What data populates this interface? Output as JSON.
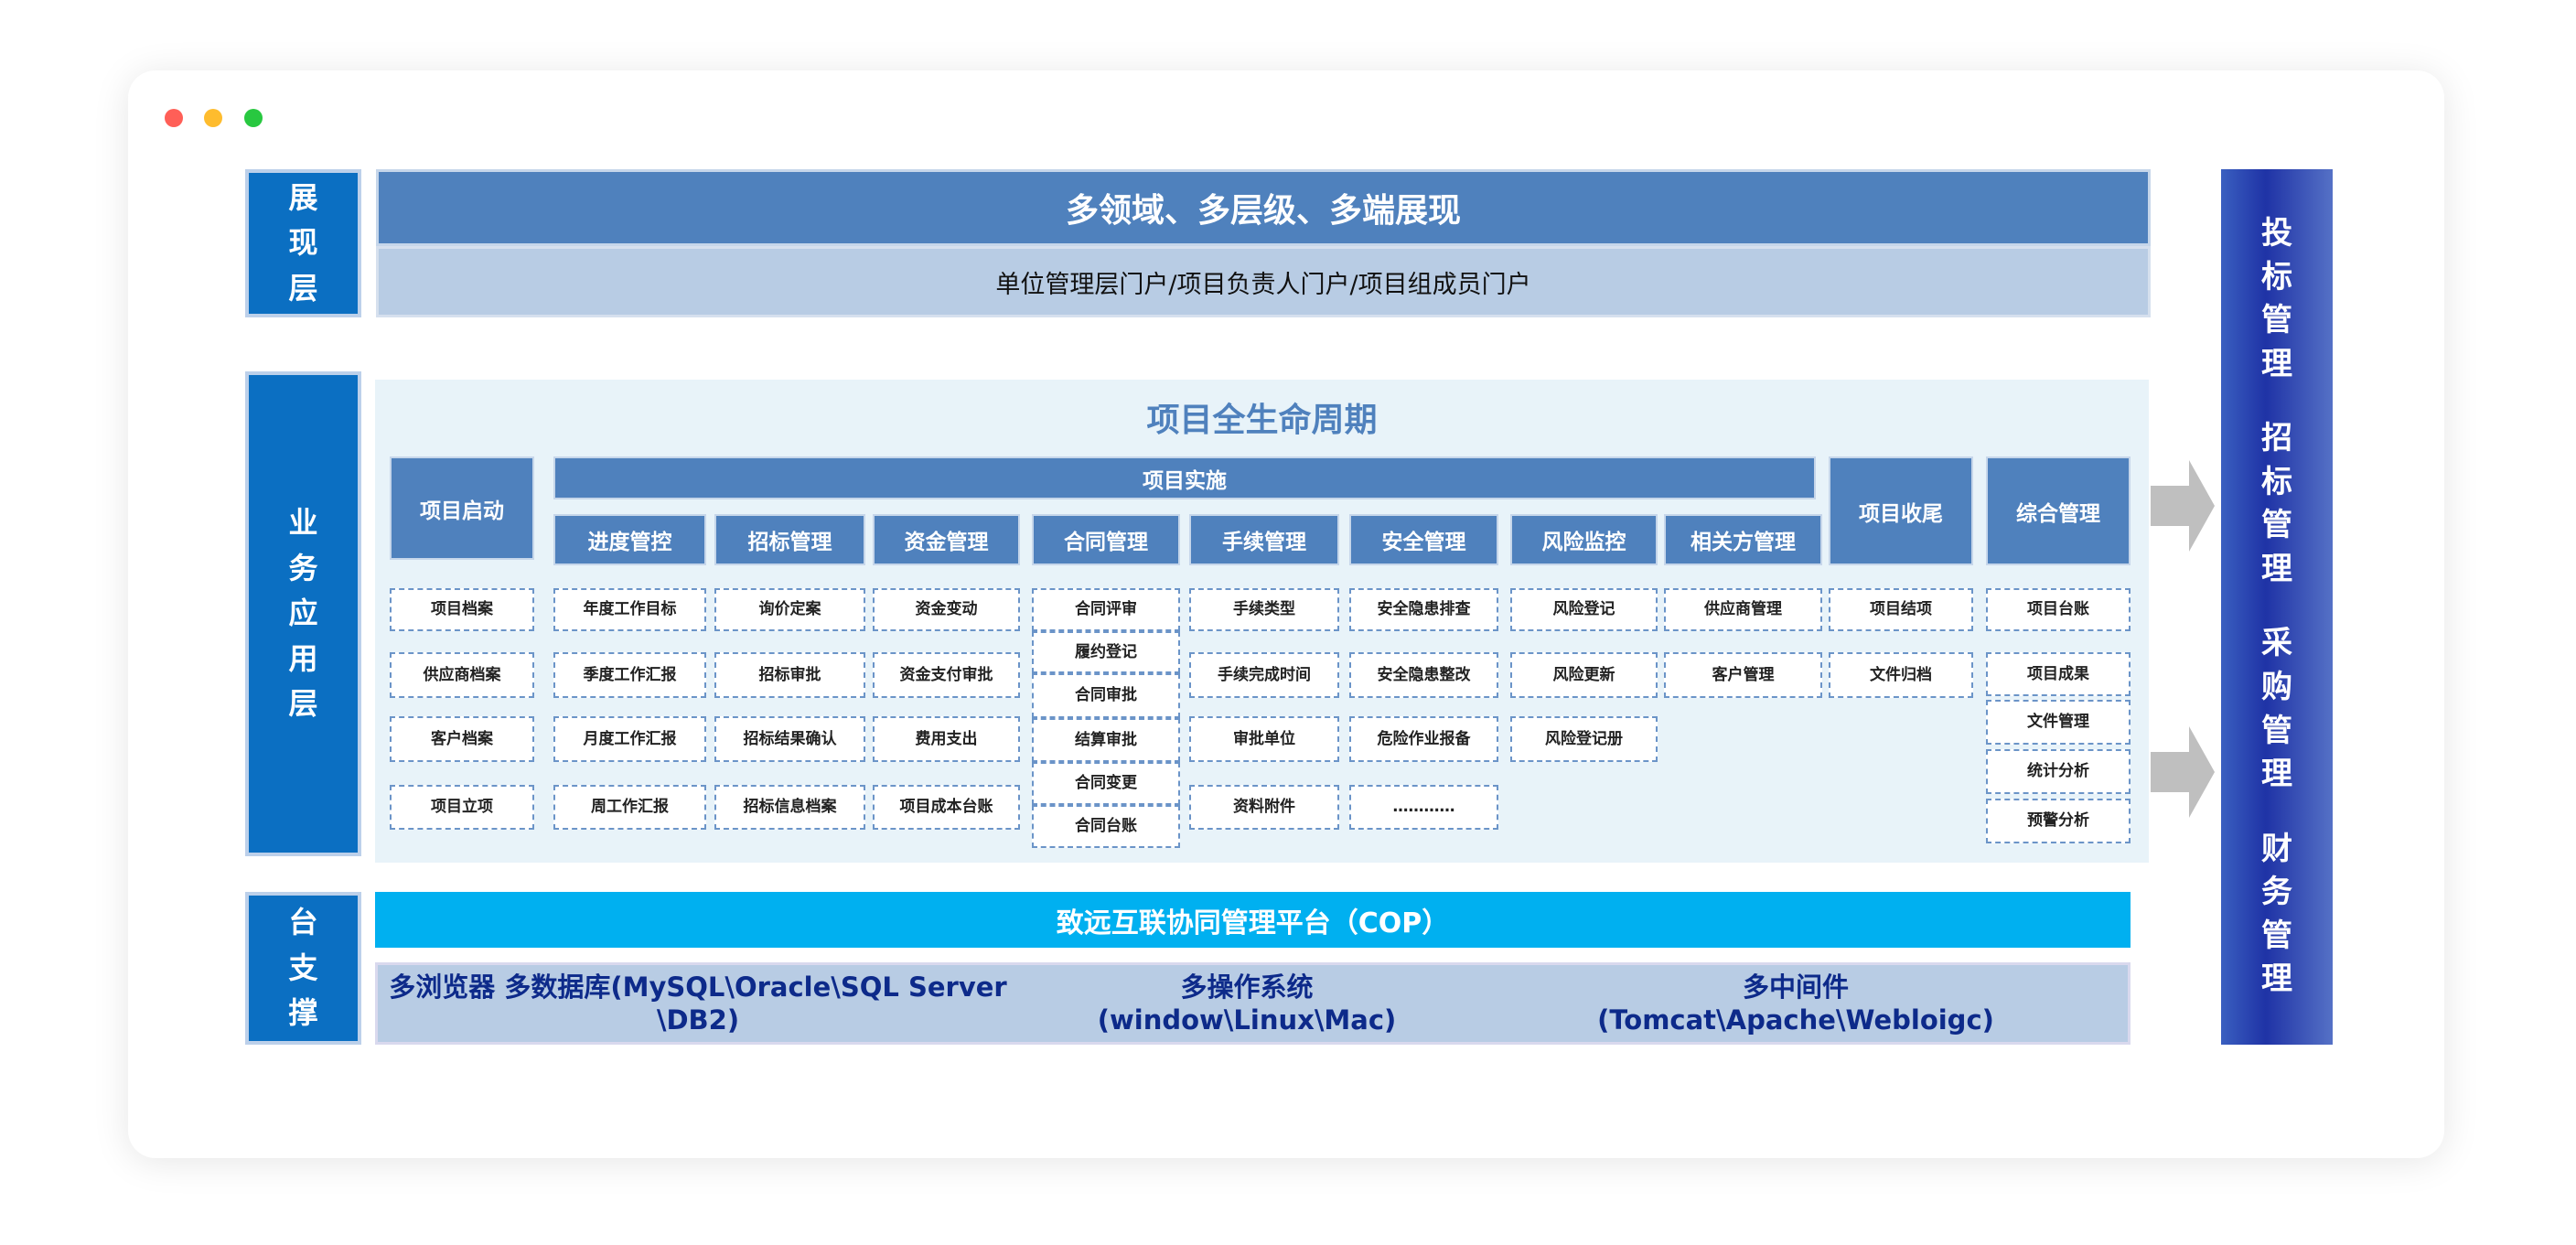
{
  "window_dots": [
    "#ff5f57",
    "#febc2e",
    "#28c840"
  ],
  "layers": {
    "presentation": {
      "label": "展现层",
      "title": "多领域、多层级、多端展现",
      "subtitle": "单位管理层门户/项目负责人门户/项目组成员门户"
    },
    "business": {
      "label": "业务应用层",
      "title": "项目全生命周期"
    },
    "platform": {
      "label": "平台支撑层",
      "bar": "致远互联协同管理平台（COP）",
      "items": [
        "多浏览器 多数据库(MySQL\\Oracle\\SQL Server \\DB2)",
        "多操作系统\n(window\\Linux\\Mac)",
        "多中间件\n(Tomcat\\Apache\\Webloigc)"
      ]
    }
  },
  "implementation_label": "项目实施",
  "columns": [
    {
      "header": "项目启动",
      "items": [
        "项目档案",
        "供应商档案",
        "客户档案",
        "项目立项"
      ]
    },
    {
      "header": "进度管控",
      "items": [
        "年度工作目标",
        "季度工作汇报",
        "月度工作汇报",
        "周工作汇报"
      ]
    },
    {
      "header": "招标管理",
      "items": [
        "询价定案",
        "招标审批",
        "招标结果确认",
        "招标信息档案"
      ]
    },
    {
      "header": "资金管理",
      "items": [
        "资金变动",
        "资金支付审批",
        "费用支出",
        "项目成本台账"
      ]
    },
    {
      "header": "合同管理",
      "items": [
        "合同评审",
        "履约登记",
        "合同审批",
        "结算审批",
        "合同变更",
        "合同台账"
      ]
    },
    {
      "header": "手续管理",
      "items": [
        "手续类型",
        "手续完成时间",
        "审批单位",
        "资料附件"
      ]
    },
    {
      "header": "安全管理",
      "items": [
        "安全隐患排查",
        "安全隐患整改",
        "危险作业报备",
        "…………"
      ]
    },
    {
      "header": "风险监控",
      "items": [
        "风险登记",
        "风险更新",
        "风险登记册"
      ]
    },
    {
      "header": "相关方管理",
      "items": [
        "供应商管理",
        "客户管理"
      ]
    },
    {
      "header": "项目收尾",
      "items": [
        "项目结项",
        "文件归档"
      ]
    },
    {
      "header": "综合管理",
      "items": [
        "项目台账",
        "项目成果",
        "文件管理",
        "统计分析",
        "预警分析"
      ]
    }
  ],
  "right_panel": [
    "投标管理",
    "招标管理",
    "采购管理",
    "财务管理"
  ],
  "colors": {
    "label_blue": "#0b6fc2",
    "header_blue": "#4f81bd",
    "cop_cyan": "#00b0f0",
    "light_panel": "#e8f3f9",
    "sub_bar": "#b8cce4",
    "arrow_gray": "#bfbfbf"
  }
}
